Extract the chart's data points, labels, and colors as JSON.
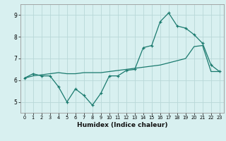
{
  "xlabel": "Humidex (Indice chaleur)",
  "x_values": [
    0,
    1,
    2,
    3,
    4,
    5,
    6,
    7,
    8,
    9,
    10,
    11,
    12,
    13,
    14,
    15,
    16,
    17,
    18,
    19,
    20,
    21,
    22,
    23
  ],
  "y_jagged": [
    6.1,
    6.3,
    6.2,
    6.2,
    5.7,
    5.0,
    5.6,
    5.3,
    4.85,
    5.4,
    6.2,
    6.2,
    6.45,
    6.5,
    7.5,
    7.6,
    8.7,
    9.1,
    8.5,
    8.4,
    8.1,
    7.7,
    6.7,
    6.4
  ],
  "y_trend": [
    6.1,
    6.2,
    6.25,
    6.3,
    6.35,
    6.3,
    6.3,
    6.35,
    6.35,
    6.35,
    6.4,
    6.45,
    6.5,
    6.55,
    6.6,
    6.65,
    6.7,
    6.8,
    6.9,
    7.0,
    7.55,
    7.6,
    6.4,
    6.4
  ],
  "line_color": "#1a7a6e",
  "bg_color": "#d8f0f0",
  "grid_color": "#b8d8d8",
  "ylim": [
    4.5,
    9.5
  ],
  "yticks": [
    5,
    6,
    7,
    8,
    9
  ],
  "xticks": [
    0,
    1,
    2,
    3,
    4,
    5,
    6,
    7,
    8,
    9,
    10,
    11,
    12,
    13,
    14,
    15,
    16,
    17,
    18,
    19,
    20,
    21,
    22,
    23
  ]
}
